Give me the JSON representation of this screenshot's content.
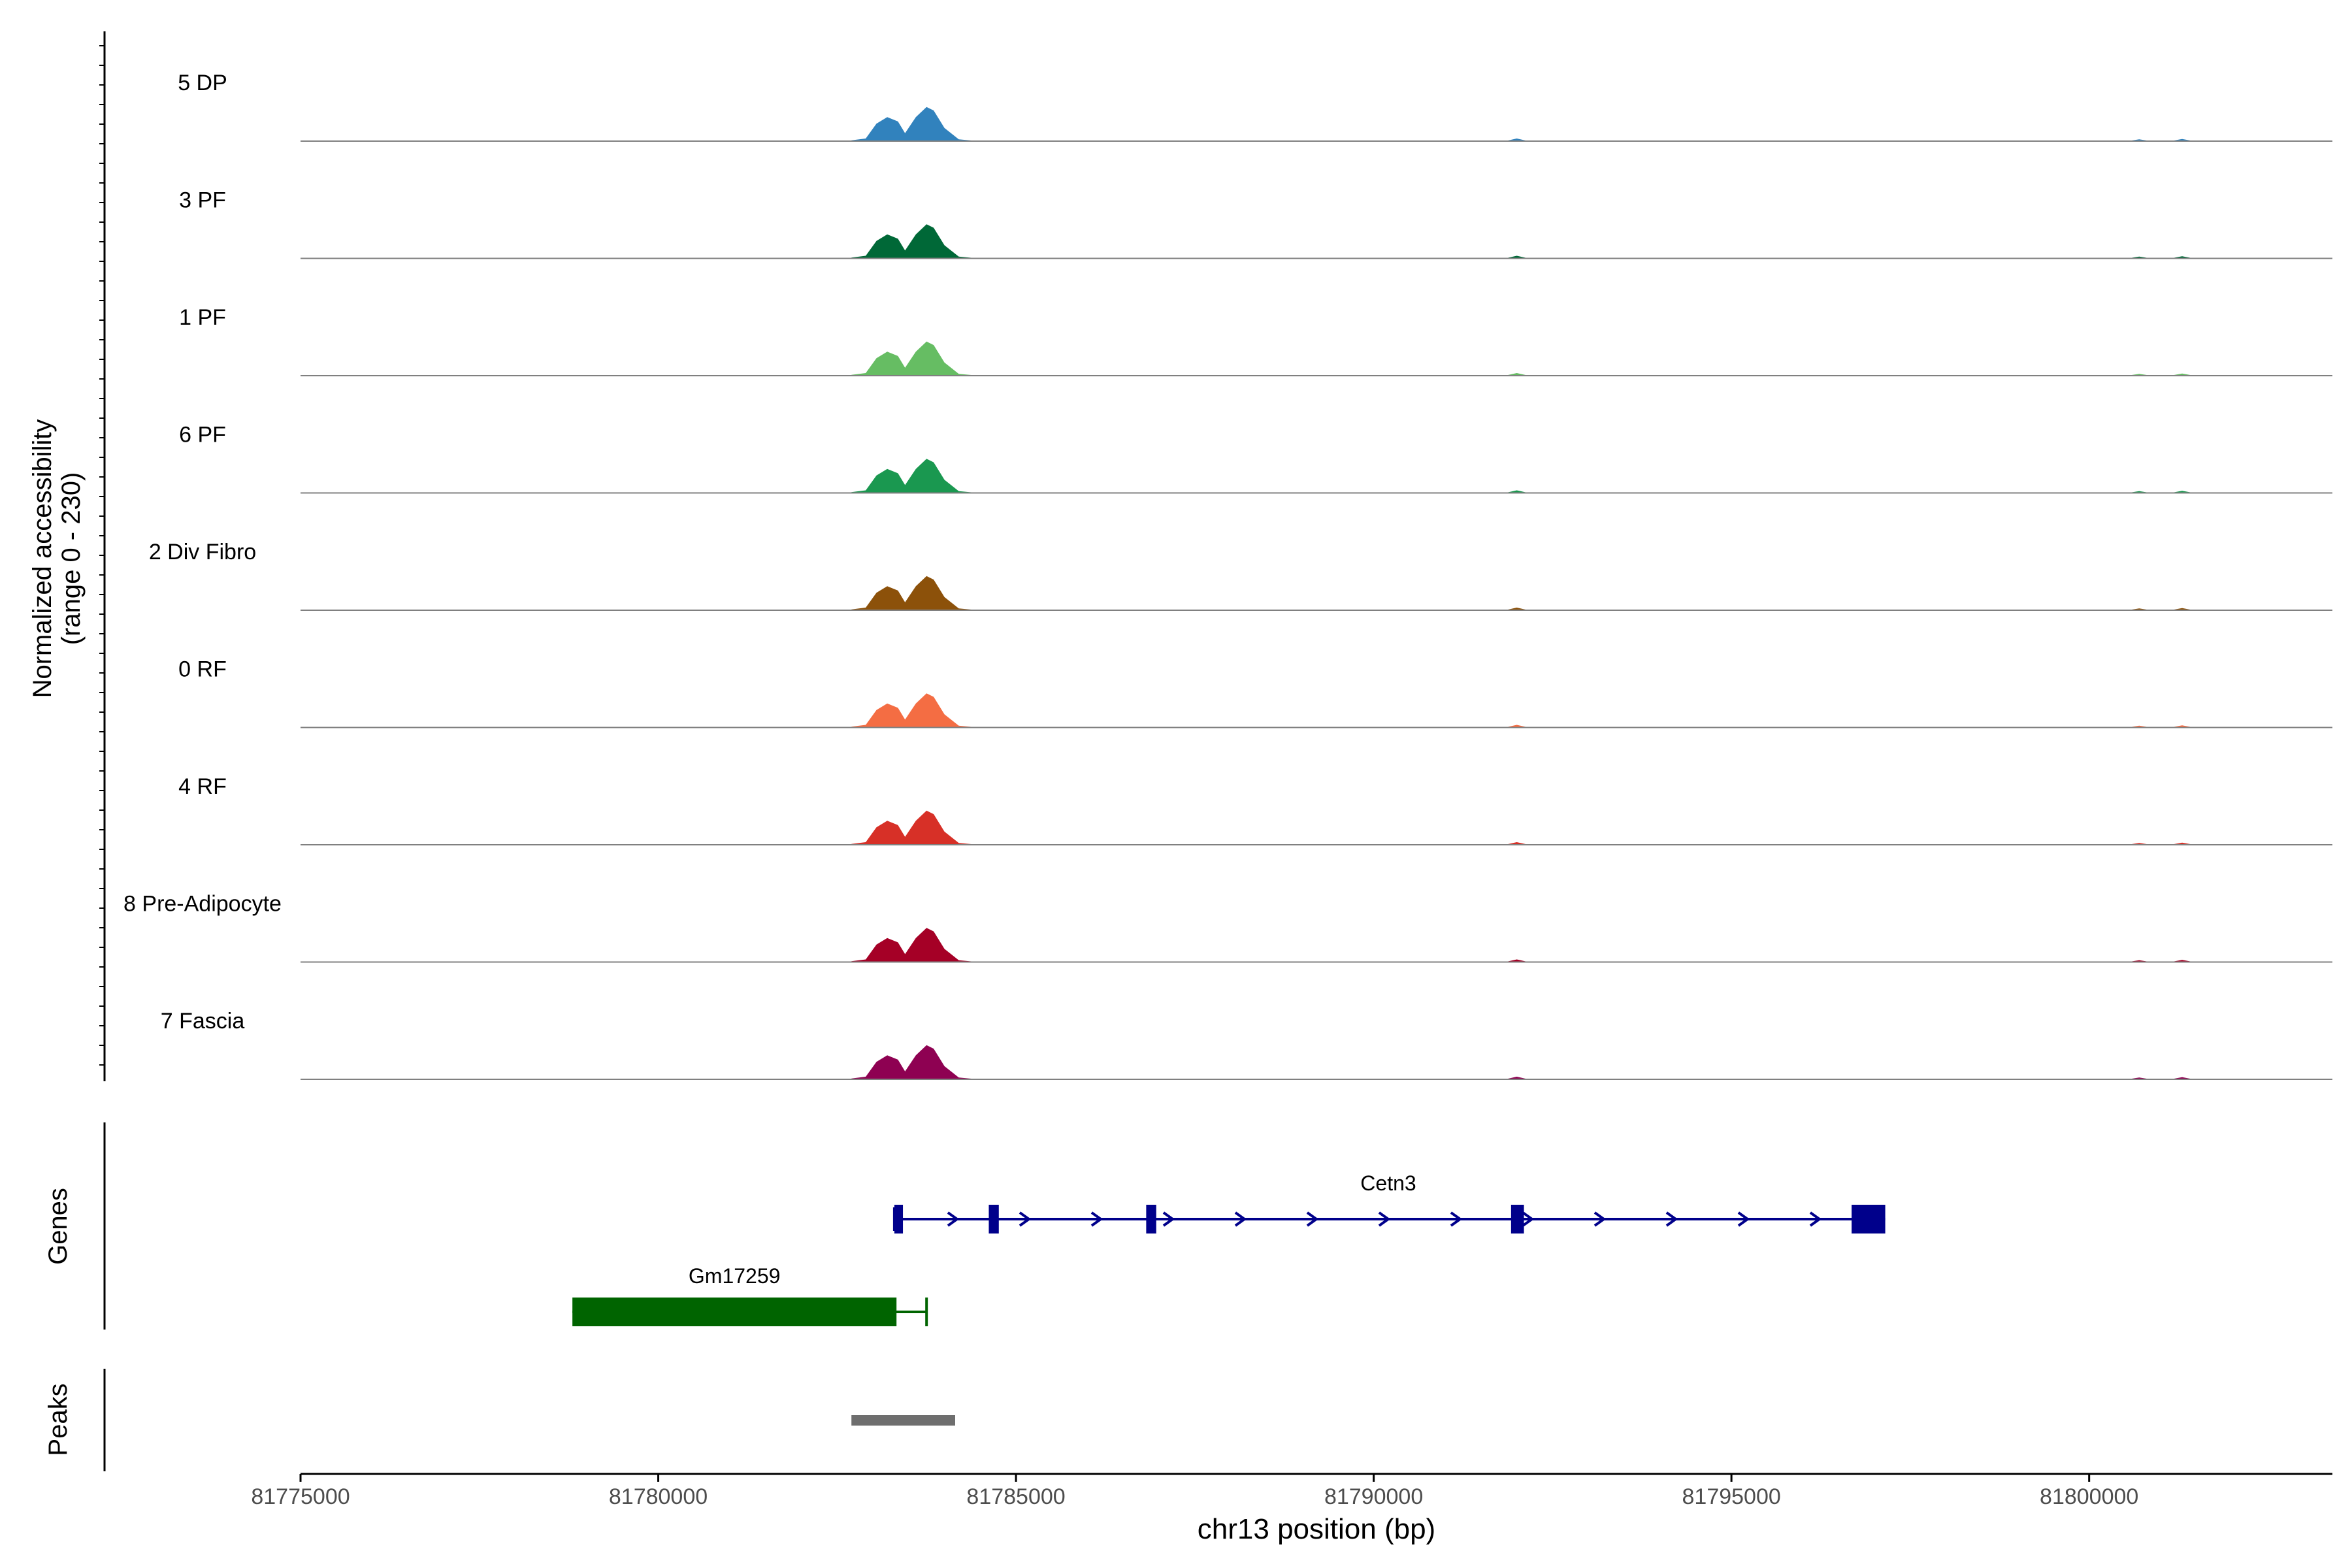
{
  "chart_data": {
    "type": "area",
    "title": "",
    "ylabel_line1": "Normalized accessibility",
    "ylabel_line2": "(range 0 - 230)",
    "ylim": [
      0,
      230
    ],
    "xlabel": "chr13 position (bp)",
    "xlim": [
      81775000,
      81803400
    ],
    "xticks": [
      81775000,
      81780000,
      81785000,
      81790000,
      81795000,
      81800000
    ],
    "xtick_labels": [
      "81775000",
      "81780000",
      "81785000",
      "81790000",
      "81795000",
      "81800000"
    ],
    "tracks": [
      {
        "name": "5 DP",
        "color": "#3182bd"
      },
      {
        "name": "3 PF",
        "color": "#006837"
      },
      {
        "name": "1 PF",
        "color": "#66bd63"
      },
      {
        "name": "6 PF",
        "color": "#1a9850"
      },
      {
        "name": "2 Div Fibro",
        "color": "#8c510a"
      },
      {
        "name": "0 RF",
        "color": "#f46d43"
      },
      {
        "name": "4 RF",
        "color": "#d73027"
      },
      {
        "name": "8 Pre-Adipocyte",
        "color": "#a50026"
      },
      {
        "name": "7 Fascia",
        "color": "#8e0152"
      }
    ],
    "peak_shape": [
      [
        81782700,
        2
      ],
      [
        81782900,
        6
      ],
      [
        81783050,
        40
      ],
      [
        81783200,
        55
      ],
      [
        81783350,
        45
      ],
      [
        81783450,
        18
      ],
      [
        81783600,
        55
      ],
      [
        81783750,
        78
      ],
      [
        81783850,
        70
      ],
      [
        81784000,
        30
      ],
      [
        81784200,
        4
      ],
      [
        81784400,
        1
      ]
    ],
    "minor_peaks": [
      {
        "pos": 81792000,
        "height": 6
      },
      {
        "pos": 81800700,
        "height": 4
      },
      {
        "pos": 81801300,
        "height": 5
      }
    ],
    "genes_label": "Genes",
    "genes": [
      {
        "name": "Cetn3",
        "color": "#00008b",
        "strand": "+",
        "start": 81783300,
        "end": 81797150,
        "exons": [
          [
            81783300,
            81783420
          ],
          [
            81784620,
            81784760
          ],
          [
            81786820,
            81786960
          ],
          [
            81791920,
            81792100
          ],
          [
            81796680,
            81797150
          ]
        ]
      },
      {
        "name": "Gm17259",
        "color": "#006400",
        "strand": "-",
        "start": 81778800,
        "end": 81783750,
        "exons": [
          [
            81778800,
            81783330
          ]
        ]
      }
    ],
    "peaks_label": "Peaks",
    "peaks": [
      {
        "start": 81782700,
        "end": 81784150,
        "color": "#6e6e6e"
      }
    ]
  }
}
